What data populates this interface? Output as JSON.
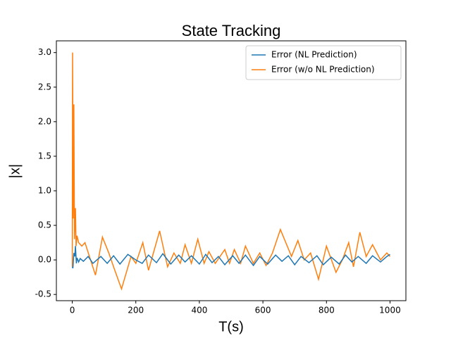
{
  "chart_data": {
    "type": "line",
    "title": "State Tracking",
    "x_label": "T(s)",
    "y_label": "|x|",
    "xlim": [
      -50,
      1050
    ],
    "ylim": [
      -0.59,
      3.17
    ],
    "xticks": [
      0,
      200,
      400,
      600,
      800,
      1000
    ],
    "yticks": [
      -0.5,
      {
        "value": 0,
        "label": "0.0"
      },
      0.5,
      {
        "value": 1,
        "label": "1.0"
      },
      1.5,
      {
        "value": 2,
        "label": "2.0"
      },
      2.5,
      {
        "value": 3,
        "label": "3.0"
      }
    ],
    "legend": "upper right",
    "series": [
      {
        "name": "Error (NL Prediction)",
        "color": "#1f77b4",
        "x": [
          0,
          2,
          5,
          8,
          10,
          13,
          15,
          20,
          25,
          35,
          50,
          65,
          90,
          110,
          130,
          150,
          175,
          200,
          220,
          240,
          265,
          285,
          310,
          335,
          355,
          375,
          400,
          420,
          440,
          460,
          480,
          505,
          525,
          545,
          570,
          590,
          615,
          640,
          660,
          680,
          700,
          720,
          745,
          770,
          790,
          815,
          840,
          860,
          880,
          900,
          925,
          945,
          970,
          990,
          1000
        ],
        "values": [
          -0.1,
          -0.12,
          0.1,
          0.05,
          0.2,
          -0.05,
          0.03,
          -0.03,
          0.02,
          -0.02,
          0.05,
          -0.05,
          0.05,
          -0.05,
          0.06,
          -0.06,
          0.08,
          0.0,
          -0.05,
          0.07,
          -0.04,
          0.09,
          -0.06,
          0.07,
          -0.03,
          0.06,
          -0.06,
          0.08,
          -0.04,
          0.05,
          -0.07,
          0.06,
          -0.05,
          0.07,
          -0.08,
          0.05,
          -0.06,
          0.07,
          -0.02,
          0.06,
          -0.07,
          0.05,
          -0.04,
          0.06,
          -0.07,
          0.04,
          -0.06,
          0.07,
          -0.03,
          0.05,
          -0.05,
          0.06,
          -0.03,
          0.05,
          0.08
        ]
      },
      {
        "name": "Error (w/o NL Prediction)",
        "color": "#ff7f0e",
        "x": [
          0,
          1,
          3,
          5,
          7,
          10,
          12,
          15,
          20,
          30,
          40,
          73,
          95,
          115,
          130,
          155,
          185,
          200,
          222,
          240,
          275,
          300,
          320,
          340,
          355,
          375,
          395,
          415,
          430,
          450,
          480,
          495,
          510,
          530,
          545,
          570,
          590,
          610,
          630,
          655,
          690,
          710,
          730,
          750,
          775,
          800,
          830,
          850,
          870,
          885,
          905,
          925,
          945,
          970,
          990,
          1000
        ],
        "values": [
          -0.1,
          3.0,
          0.6,
          2.25,
          0.3,
          0.75,
          0.2,
          0.35,
          0.25,
          0.2,
          0.25,
          -0.22,
          0.33,
          0.1,
          -0.1,
          -0.42,
          0.05,
          -0.05,
          0.25,
          -0.15,
          0.42,
          -0.1,
          0.1,
          -0.05,
          0.22,
          -0.05,
          0.3,
          -0.05,
          0.12,
          -0.05,
          0.15,
          -0.05,
          0.15,
          -0.05,
          0.2,
          -0.05,
          0.1,
          -0.08,
          0.1,
          0.44,
          0.05,
          0.28,
          0.0,
          0.1,
          -0.28,
          0.2,
          -0.18,
          0.0,
          0.25,
          -0.1,
          0.4,
          0.05,
          0.22,
          0.0,
          0.1,
          0.05
        ]
      }
    ]
  }
}
